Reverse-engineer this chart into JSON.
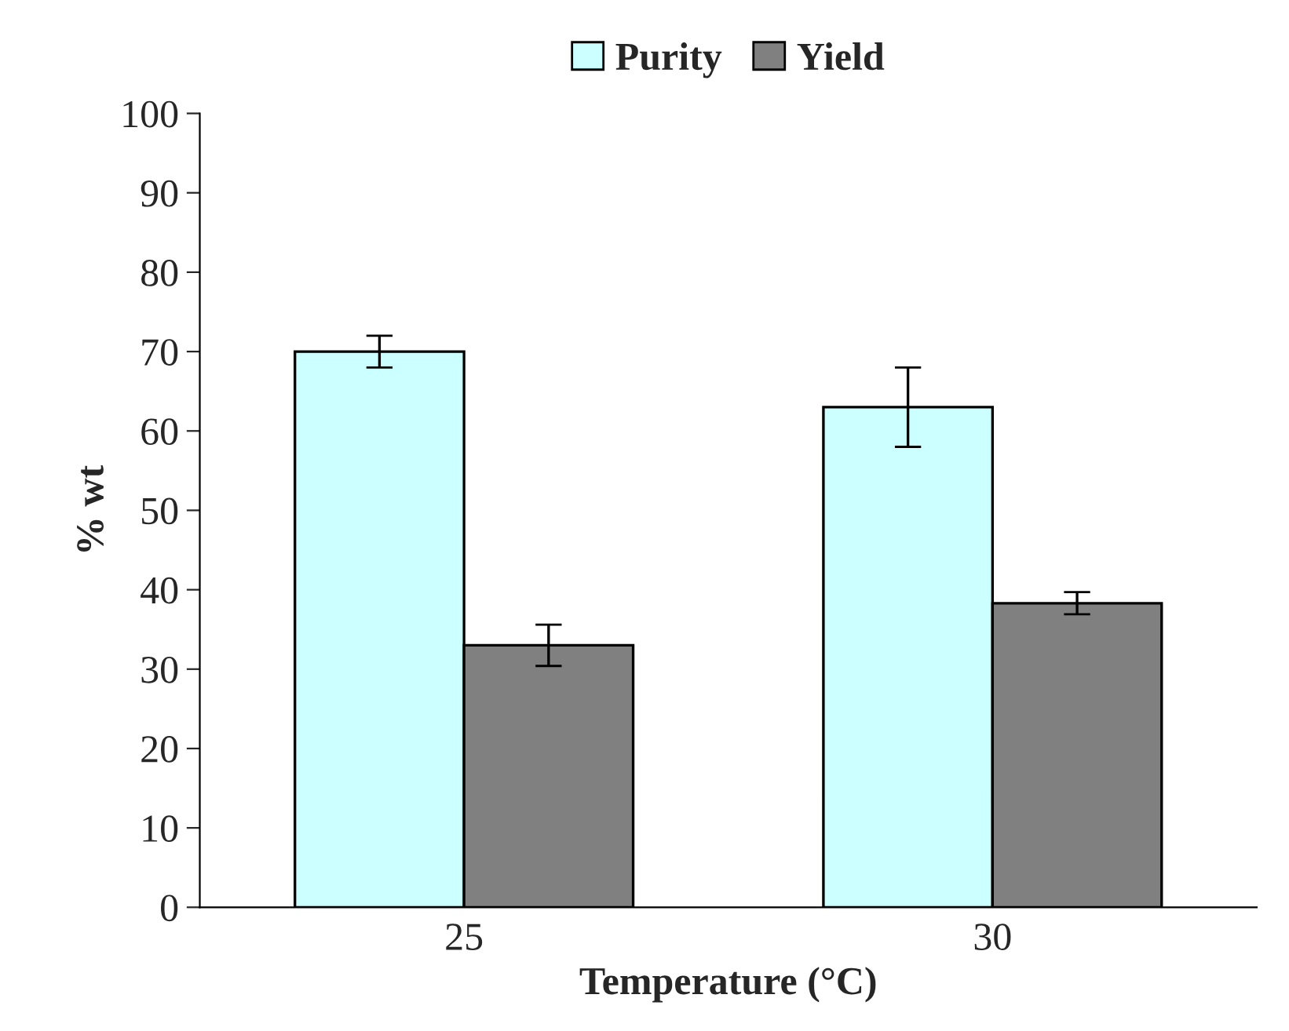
{
  "chart_data": {
    "type": "bar",
    "xlabel": "Temperature (°C)",
    "ylabel": "% wt",
    "categories": [
      "25",
      "30"
    ],
    "series": [
      {
        "name": "Purity",
        "color": "#ccffff",
        "values": [
          70,
          63
        ],
        "errors": [
          2,
          5
        ]
      },
      {
        "name": "Yield",
        "color": "#808080",
        "values": [
          33,
          38.3
        ],
        "errors": [
          2.6,
          1.4
        ]
      }
    ],
    "ylim": [
      0,
      100
    ],
    "yticks": [
      0,
      10,
      20,
      30,
      40,
      50,
      60,
      70,
      80,
      90,
      100
    ],
    "grid": false,
    "legend": "top"
  }
}
